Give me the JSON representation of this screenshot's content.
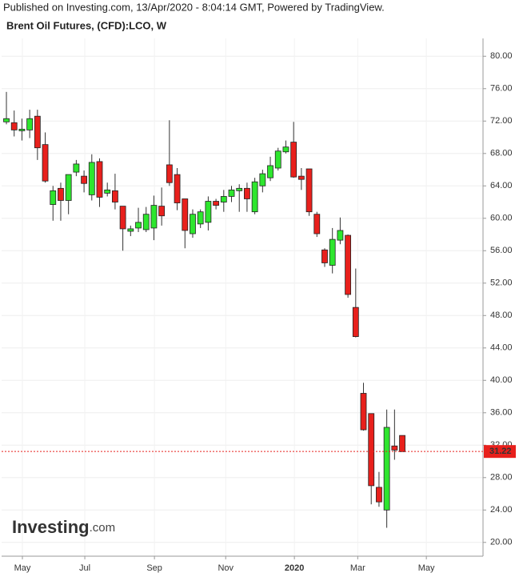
{
  "chart_data": {
    "type": "candlestick",
    "source": "Published on Investing.com, 13/Apr/2020 - 8:04:14 GMT, Powered by TradingView.",
    "title": "Brent Oil Futures, (CFD):LCO, W",
    "watermark": {
      "brand": "Investing",
      "suffix": ".com"
    },
    "up_color": "#2ee62e",
    "down_color": "#e8201c",
    "grid": true,
    "x": [
      0,
      1,
      2,
      3,
      4,
      5,
      6,
      7,
      8,
      9,
      10,
      11,
      12,
      13,
      14,
      15,
      16,
      17,
      18,
      19,
      20,
      21,
      22,
      23,
      24,
      25,
      26,
      27,
      28,
      29,
      30,
      31,
      32,
      33,
      34,
      35,
      36,
      37,
      38,
      39,
      40,
      41,
      42,
      43,
      44,
      45,
      46,
      47,
      48,
      49,
      50,
      51
    ],
    "open": [
      71.9,
      71.8,
      70.8,
      70.9,
      72.6,
      69.1,
      61.7,
      63.7,
      62.2,
      65.7,
      65.2,
      62.9,
      67.0,
      63.1,
      63.4,
      61.5,
      58.4,
      58.8,
      58.6,
      58.8,
      61.5,
      66.6,
      65.4,
      62.4,
      58.1,
      59.3,
      59.5,
      62.1,
      62.0,
      62.7,
      63.4,
      63.7,
      60.8,
      64.0,
      65.0,
      66.2,
      68.2,
      69.4,
      65.2,
      66.1,
      60.5,
      56.1,
      54.2,
      57.3,
      57.9,
      49.0,
      38.4,
      35.9,
      26.8,
      24.0,
      31.9,
      33.2
    ],
    "high": [
      75.6,
      73.3,
      72.3,
      73.4,
      73.4,
      70.6,
      64.0,
      64.4,
      65.4,
      67.2,
      65.9,
      67.9,
      67.4,
      64.4,
      65.5,
      61.5,
      59.1,
      61.3,
      61.4,
      62.8,
      63.8,
      72.1,
      66.2,
      62.4,
      61.1,
      61.1,
      62.7,
      62.4,
      63.5,
      64.0,
      64.2,
      64.4,
      65.0,
      66.0,
      67.6,
      68.7,
      69.6,
      71.9,
      66.2,
      66.1,
      60.8,
      56.3,
      58.8,
      60.1,
      58.0,
      53.8,
      39.7,
      35.9,
      28.7,
      36.4,
      36.4,
      33.2
    ],
    "low": [
      71.6,
      70.1,
      69.6,
      69.9,
      67.2,
      64.4,
      59.7,
      59.7,
      60.5,
      65.2,
      63.2,
      62.2,
      61.4,
      62.7,
      61.1,
      56.0,
      57.8,
      58.3,
      58.3,
      57.3,
      59.1,
      64.0,
      61.0,
      56.3,
      57.6,
      58.8,
      58.5,
      61.1,
      60.8,
      62.0,
      60.8,
      60.8,
      60.5,
      63.2,
      64.6,
      65.9,
      68.0,
      65.0,
      63.5,
      60.3,
      57.7,
      54.0,
      53.2,
      56.8,
      50.2,
      45.3,
      33.8,
      24.7,
      24.4,
      21.8,
      30.2,
      31.2
    ],
    "close": [
      72.3,
      70.9,
      71.0,
      72.3,
      68.7,
      64.6,
      63.4,
      62.2,
      65.4,
      66.7,
      64.3,
      66.9,
      62.6,
      63.5,
      62.0,
      58.7,
      58.7,
      59.5,
      60.5,
      61.6,
      60.3,
      64.4,
      61.9,
      58.5,
      60.5,
      60.8,
      62.1,
      61.6,
      62.7,
      63.5,
      63.7,
      62.4,
      64.5,
      65.5,
      66.5,
      68.3,
      68.8,
      65.1,
      64.8,
      60.8,
      58.1,
      54.5,
      57.4,
      58.5,
      50.6,
      45.4,
      33.9,
      27.0,
      25.0,
      34.2,
      31.4,
      31.2
    ],
    "last_price": 31.22,
    "last_price_color": "#e8201c",
    "xlim": [
      -0.62,
      61.4
    ],
    "xticks": [
      {
        "value": 2.06,
        "label": "May"
      },
      {
        "value": 10.1,
        "label": "Jul"
      },
      {
        "value": 19.07,
        "label": "Sep"
      },
      {
        "value": 28.25,
        "label": "Nov"
      },
      {
        "value": 37.1,
        "label": "2020"
      },
      {
        "value": 45.26,
        "label": "Mar"
      },
      {
        "value": 54.1,
        "label": "May"
      }
    ],
    "ylim": [
      18.3,
      82.2
    ],
    "yticks": [
      {
        "value": 20,
        "label": "20.00"
      },
      {
        "value": 24,
        "label": "24.00"
      },
      {
        "value": 28,
        "label": "28.00"
      },
      {
        "value": 32,
        "label": "32.00"
      },
      {
        "value": 36,
        "label": "36.00"
      },
      {
        "value": 40,
        "label": "40.00"
      },
      {
        "value": 44,
        "label": "44.00"
      },
      {
        "value": 48,
        "label": "48.00"
      },
      {
        "value": 52,
        "label": "52.00"
      },
      {
        "value": 56,
        "label": "56.00"
      },
      {
        "value": 60,
        "label": "60.00"
      },
      {
        "value": 64,
        "label": "64.00"
      },
      {
        "value": 68,
        "label": "68.00"
      },
      {
        "value": 72,
        "label": "72.00"
      },
      {
        "value": 76,
        "label": "76.00"
      },
      {
        "value": 80,
        "label": "80.00"
      }
    ]
  }
}
